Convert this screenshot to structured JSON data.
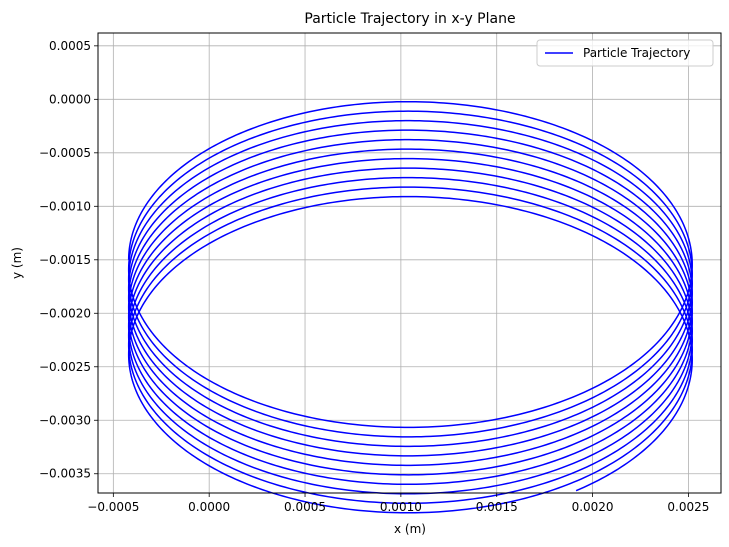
{
  "chart_data": {
    "type": "line",
    "title": "Particle Trajectory in x-y Plane",
    "xlabel": "x (m)",
    "ylabel": "y (m)",
    "xlim": [
      -0.00058,
      0.00267
    ],
    "ylim": [
      -0.00368,
      0.00062
    ],
    "xticks": [
      -0.0005,
      0.0,
      0.0005,
      0.001,
      0.0015,
      0.002,
      0.0025
    ],
    "xtick_labels": [
      "−0.0005",
      "0.0000",
      "0.0005",
      "0.0010",
      "0.0015",
      "0.0020",
      "0.0025"
    ],
    "yticks": [
      0.0005,
      0.0,
      -0.0005,
      -0.001,
      -0.0015,
      -0.002,
      -0.0025,
      -0.003,
      -0.0035
    ],
    "ytick_labels": [
      "0.0005",
      "0.0000",
      "−0.0005",
      "−0.0010",
      "−0.0015",
      "−0.0020",
      "−0.0025",
      "−0.0030",
      "−0.0035"
    ],
    "grid": true,
    "legend_position": "top-right",
    "series": [
      {
        "name": "Particle Trajectory",
        "color": "#0000ff",
        "model": {
          "center_x": 0.00105,
          "center_y_start": -0.0015,
          "radius_x": 0.00147,
          "radius_y": 0.0015,
          "drift_y_per_turn": -8.87e-05,
          "turns": 10.65,
          "start": [
            0.0,
            0.0
          ],
          "end": [
            0.00187,
            -0.0008
          ]
        }
      }
    ]
  }
}
